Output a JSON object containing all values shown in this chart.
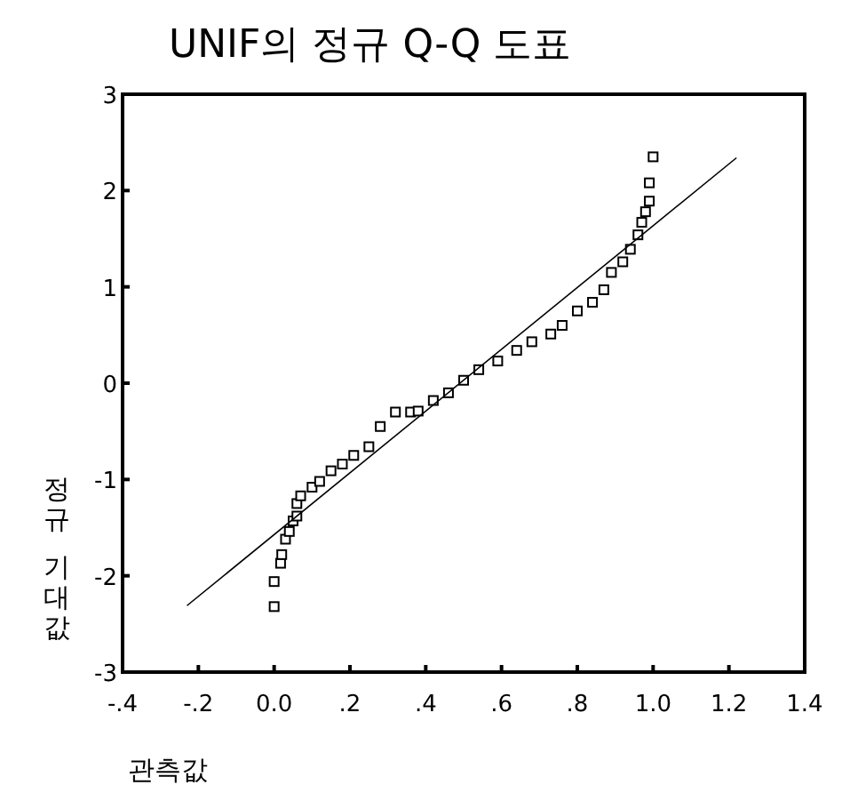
{
  "chart_data": {
    "type": "scatter",
    "title": "UNIF의 정규 Q-Q 도표",
    "xlabel": "관측값",
    "ylabel": "정규 기대값",
    "xlim": [
      -0.4,
      1.4
    ],
    "ylim": [
      -3,
      3
    ],
    "xticks": [
      {
        "value": -0.4,
        "label": "-.4"
      },
      {
        "value": -0.2,
        "label": "-.2"
      },
      {
        "value": 0,
        "label": "0.0"
      },
      {
        "value": 0.2,
        "label": ".2"
      },
      {
        "value": 0.4,
        "label": ".4"
      },
      {
        "value": 0.6,
        "label": ".6"
      },
      {
        "value": 0.8,
        "label": ".8"
      },
      {
        "value": 1.0,
        "label": "1.0"
      },
      {
        "value": 1.2,
        "label": "1.2"
      },
      {
        "value": 1.4,
        "label": "1.4"
      }
    ],
    "yticks": [
      -3,
      -2,
      -1,
      0,
      1,
      2,
      3
    ],
    "grid": false,
    "series": [
      {
        "marker": "square",
        "color": "#000000",
        "x": [
          0.0,
          0.0,
          0.017,
          0.02,
          0.03,
          0.04,
          0.05,
          0.06,
          0.06,
          0.07,
          0.1,
          0.12,
          0.15,
          0.18,
          0.21,
          0.25,
          0.28,
          0.32,
          0.36,
          0.38,
          0.42,
          0.46,
          0.5,
          0.54,
          0.59,
          0.64,
          0.68,
          0.73,
          0.76,
          0.8,
          0.84,
          0.87,
          0.89,
          0.92,
          0.94,
          0.96,
          0.97,
          0.98,
          0.99,
          0.99,
          1.0
        ],
        "values": [
          -2.32,
          -2.06,
          -1.87,
          -1.78,
          -1.62,
          -1.54,
          -1.43,
          -1.38,
          -1.25,
          -1.17,
          -1.08,
          -1.02,
          -0.91,
          -0.84,
          -0.75,
          -0.66,
          -0.45,
          -0.3,
          -0.3,
          -0.29,
          -0.18,
          -0.1,
          0.03,
          0.14,
          0.23,
          0.34,
          0.43,
          0.51,
          0.6,
          0.75,
          0.84,
          0.97,
          1.15,
          1.26,
          1.39,
          1.54,
          1.67,
          1.78,
          1.89,
          2.08,
          2.35
        ]
      },
      {
        "type": "line",
        "marker": "none",
        "line_style": "solid",
        "color": "#000000",
        "x": [
          -0.23,
          1.22
        ],
        "values": [
          -2.31,
          2.34
        ]
      }
    ]
  }
}
